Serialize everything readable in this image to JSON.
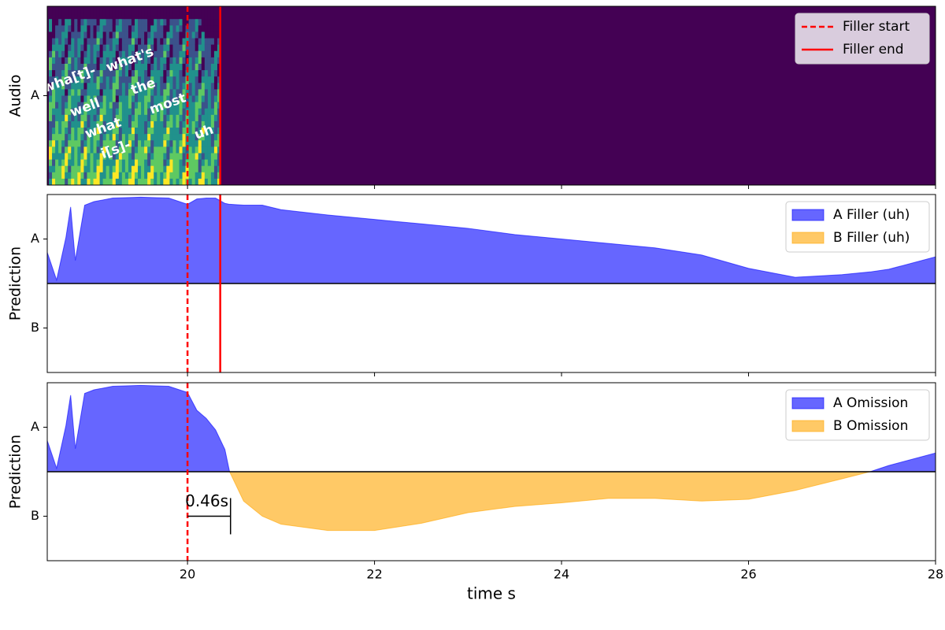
{
  "chart_data": [
    {
      "type": "spectrogram",
      "ylabel": "Audio",
      "xlim": [
        18.5,
        28
      ],
      "xticks": [
        20,
        22,
        24,
        26,
        28
      ],
      "show_xticklabels": false,
      "ylim": [
        0,
        1
      ],
      "yticks": [
        {
          "value": 0.5,
          "label": "A"
        }
      ],
      "background": "#440154",
      "words": [
        "wha[t]-",
        "what's",
        "the",
        "well",
        "most",
        "what",
        "i[s]-",
        "uh"
      ],
      "vlines": [
        {
          "name": "Filler start",
          "x": 20.0,
          "style": "dashed",
          "color": "#ff0000"
        },
        {
          "name": "Filler end",
          "x": 20.35,
          "style": "solid",
          "color": "#ff0000"
        }
      ],
      "legend": "upper right"
    },
    {
      "type": "area",
      "ylabel": "Prediction",
      "xlim": [
        18.5,
        28
      ],
      "xticks": [
        20,
        22,
        24,
        26,
        28
      ],
      "show_xticklabels": false,
      "ylim": [
        -1,
        1
      ],
      "yticks": [
        {
          "value": 0.5,
          "label": "A"
        },
        {
          "value": -0.5,
          "label": "B"
        }
      ],
      "x": [
        18.5,
        18.6,
        18.7,
        18.75,
        18.8,
        18.9,
        19.0,
        19.2,
        19.5,
        19.8,
        20.0,
        20.1,
        20.2,
        20.3,
        20.4,
        20.45,
        20.6,
        20.8,
        21.0,
        21.5,
        22,
        22.5,
        23,
        23.5,
        24,
        24.5,
        25,
        25.5,
        26,
        26.5,
        27,
        27.3,
        27.5,
        28
      ],
      "series": [
        {
          "name": "A Filler (uh)",
          "color": "#0000ff",
          "values": [
            0.35,
            0.04,
            0.52,
            0.86,
            0.26,
            0.88,
            0.92,
            0.96,
            0.97,
            0.96,
            0.89,
            0.95,
            0.96,
            0.96,
            0.9,
            0.89,
            0.88,
            0.88,
            0.83,
            0.77,
            0.72,
            0.67,
            0.62,
            0.55,
            0.5,
            0.45,
            0.4,
            0.32,
            0.17,
            0.07,
            0.1,
            0.13,
            0.16,
            0.3
          ]
        },
        {
          "name": "B Filler (uh)",
          "color": "#ffa500",
          "values": [
            0,
            0,
            0,
            0,
            0,
            0,
            0,
            0,
            0,
            0,
            0,
            0,
            0,
            0,
            0,
            0,
            0,
            0,
            0,
            0,
            0,
            0,
            0,
            0,
            0,
            0,
            0,
            0,
            0,
            0,
            0,
            0,
            0,
            0
          ]
        }
      ],
      "vlines": [
        {
          "x": 20.0,
          "style": "dashed",
          "color": "#ff0000"
        },
        {
          "x": 20.35,
          "style": "solid",
          "color": "#ff0000"
        }
      ],
      "legend": "upper right"
    },
    {
      "type": "area",
      "ylabel": "Prediction",
      "xlabel": "time s",
      "xlim": [
        18.5,
        28
      ],
      "xticks": [
        20,
        22,
        24,
        26,
        28
      ],
      "show_xticklabels": true,
      "ylim": [
        -1,
        1
      ],
      "yticks": [
        {
          "value": 0.5,
          "label": "A"
        },
        {
          "value": -0.5,
          "label": "B"
        }
      ],
      "x": [
        18.5,
        18.6,
        18.7,
        18.75,
        18.8,
        18.9,
        19.0,
        19.2,
        19.5,
        19.8,
        20.0,
        20.1,
        20.2,
        20.3,
        20.4,
        20.45,
        20.6,
        20.8,
        21.0,
        21.5,
        22,
        22.5,
        23,
        23.5,
        24,
        24.5,
        25,
        25.5,
        26,
        26.5,
        27,
        27.3,
        27.5,
        28
      ],
      "series": [
        {
          "name": "A Omission",
          "color": "#0000ff",
          "values": [
            0.35,
            0.04,
            0.52,
            0.86,
            0.26,
            0.88,
            0.92,
            0.96,
            0.97,
            0.96,
            0.89,
            0.69,
            0.6,
            0.47,
            0.25,
            0,
            0,
            0,
            0,
            0,
            0,
            0,
            0,
            0,
            0,
            0,
            0,
            0,
            0,
            0,
            0,
            0,
            0.07,
            0.21
          ]
        },
        {
          "name": "B Omission",
          "color": "#ffa500",
          "values": [
            0,
            0,
            0,
            0,
            0,
            0,
            0,
            0,
            0,
            0,
            0,
            0,
            0,
            0,
            0,
            0,
            -0.33,
            -0.5,
            -0.59,
            -0.66,
            -0.66,
            -0.58,
            -0.46,
            -0.39,
            -0.35,
            -0.3,
            -0.3,
            -0.33,
            -0.31,
            -0.21,
            -0.08,
            0,
            0,
            0
          ]
        }
      ],
      "vlines": [
        {
          "x": 20.0,
          "style": "dashed",
          "color": "#ff0000"
        }
      ],
      "annotation": {
        "text": "0.46s",
        "x": [
          20.0,
          20.46
        ],
        "y": -0.5
      },
      "legend": "upper right"
    }
  ]
}
